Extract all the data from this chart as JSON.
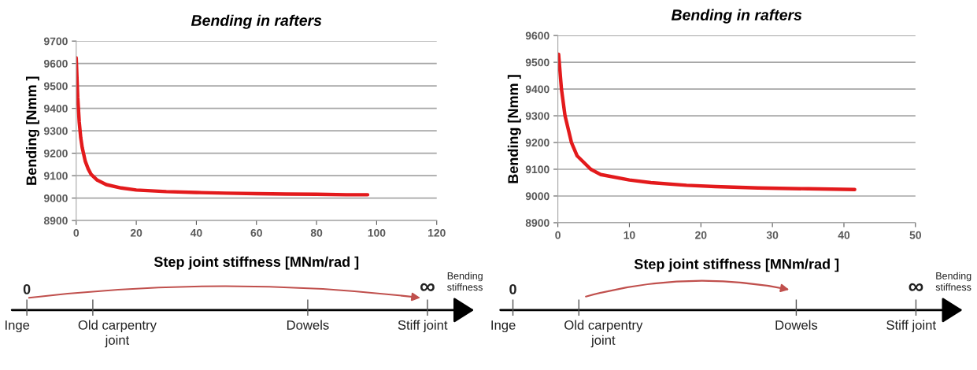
{
  "chart_data": [
    {
      "type": "line",
      "title": "Bending in rafters",
      "xlabel": "Step joint stiffness [MNm/rad ]",
      "ylabel": "Bending [Nmm ]",
      "grid": "y",
      "marker": "none",
      "line_style": "solid",
      "x": [
        0,
        0.5,
        1,
        1.5,
        2,
        2.5,
        3,
        4,
        5,
        7,
        10,
        15,
        20,
        30,
        40,
        50,
        60,
        70,
        80,
        90,
        97
      ],
      "series": [
        {
          "color": "#e31a1c",
          "values": [
            9625,
            9450,
            9340,
            9270,
            9225,
            9195,
            9165,
            9130,
            9105,
            9080,
            9060,
            9045,
            9036,
            9029,
            9025,
            9022,
            9020,
            9018,
            9017,
            9015,
            9015
          ]
        }
      ],
      "xlim": [
        0,
        120
      ],
      "xticks": [
        0,
        20,
        40,
        60,
        80,
        100,
        120
      ],
      "ylim": [
        8900,
        9700
      ],
      "yticks": [
        8900,
        9000,
        9100,
        9200,
        9300,
        9400,
        9500,
        9600,
        9700
      ]
    },
    {
      "type": "line",
      "title": "Bending in rafters",
      "xlabel": "Step joint stiffness [MNm/rad ]",
      "ylabel": "Bending [Nmm ]",
      "grid": "y",
      "marker": "none",
      "line_style": "solid",
      "x": [
        0.1,
        0.5,
        1,
        1.9,
        2.7,
        4.6,
        6,
        10,
        13,
        18,
        22,
        28,
        35,
        41.5
      ],
      "series": [
        {
          "color": "#e31a1c",
          "values": [
            9530,
            9400,
            9300,
            9200,
            9150,
            9100,
            9080,
            9060,
            9050,
            9040,
            9035,
            9030,
            9027,
            9024
          ]
        }
      ],
      "xlim": [
        0,
        50
      ],
      "xticks": [
        0,
        10,
        20,
        30,
        40,
        50
      ],
      "ylim": [
        8900,
        9600
      ],
      "yticks": [
        8900,
        9000,
        9100,
        9200,
        9300,
        9400,
        9500,
        9600
      ]
    },
    {
      "type": "other",
      "annotations": [
        "0",
        "∞",
        "Inge",
        "Old carpentry\njoint",
        "Dowels",
        "Stiff joint",
        "Bending\nstiffness"
      ]
    },
    {
      "type": "other",
      "annotations": [
        "0",
        "∞",
        "Inge",
        "Old carpentry\njoint",
        "Dowels",
        "Stiff joint",
        "Bending\nstiffness"
      ]
    }
  ]
}
